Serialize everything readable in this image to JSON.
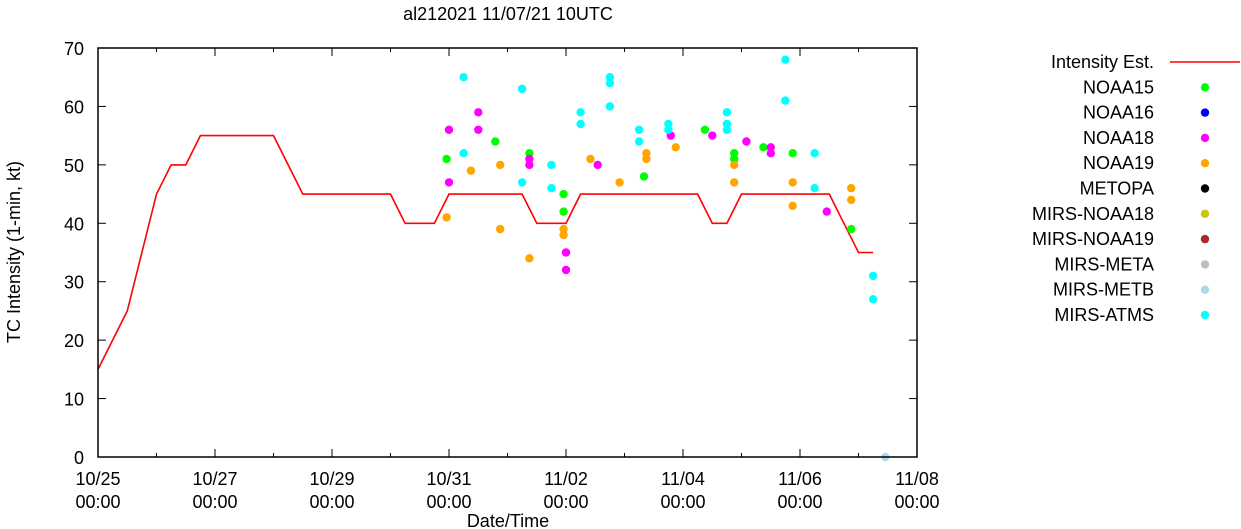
{
  "chart_data": {
    "type": "scatter",
    "title": "al212021 11/07/21 10UTC",
    "xlabel": "Date/Time",
    "ylabel": "TC Intensity (1-min, kt)",
    "ylim": [
      0,
      70
    ],
    "yticks": [
      "0",
      "10",
      "20",
      "30",
      "40",
      "50",
      "60",
      "70"
    ],
    "xlim": [
      "2021-10-25 00:00",
      "2021-11-08 00:00"
    ],
    "xticks": [
      {
        "date": "10/25",
        "time": "00:00"
      },
      {
        "date": "10/27",
        "time": "00:00"
      },
      {
        "date": "10/29",
        "time": "00:00"
      },
      {
        "date": "10/31",
        "time": "00:00"
      },
      {
        "date": "11/02",
        "time": "00:00"
      },
      {
        "date": "11/04",
        "time": "00:00"
      },
      {
        "date": "11/06",
        "time": "00:00"
      },
      {
        "date": "11/08",
        "time": "00:00"
      }
    ],
    "grid": false,
    "legend_position": "right",
    "line_series": {
      "name": "Intensity Est.",
      "color": "#ff0000",
      "points": [
        [
          "2021-10-25 00:00",
          15
        ],
        [
          "2021-10-25 12:00",
          25
        ],
        [
          "2021-10-26 00:00",
          45
        ],
        [
          "2021-10-26 06:00",
          50
        ],
        [
          "2021-10-26 12:00",
          50
        ],
        [
          "2021-10-26 18:00",
          55
        ],
        [
          "2021-10-28 00:00",
          55
        ],
        [
          "2021-10-28 12:00",
          45
        ],
        [
          "2021-10-30 00:00",
          45
        ],
        [
          "2021-10-30 06:00",
          40
        ],
        [
          "2021-10-30 18:00",
          40
        ],
        [
          "2021-10-31 00:00",
          45
        ],
        [
          "2021-11-01 06:00",
          45
        ],
        [
          "2021-11-01 12:00",
          40
        ],
        [
          "2021-11-02 00:00",
          40
        ],
        [
          "2021-11-02 06:00",
          45
        ],
        [
          "2021-11-04 06:00",
          45
        ],
        [
          "2021-11-04 12:00",
          40
        ],
        [
          "2021-11-04 18:00",
          40
        ],
        [
          "2021-11-05 00:00",
          45
        ],
        [
          "2021-11-06 12:00",
          45
        ],
        [
          "2021-11-06 18:00",
          40
        ],
        [
          "2021-11-07 00:00",
          35
        ],
        [
          "2021-11-07 06:00",
          35
        ]
      ]
    },
    "series": [
      {
        "name": "NOAA15",
        "color": "#00ff00",
        "points": [
          [
            "2021-10-30 23:00",
            51
          ],
          [
            "2021-10-31 19:00",
            54
          ],
          [
            "2021-11-01 09:00",
            52
          ],
          [
            "2021-11-01 23:00",
            45
          ],
          [
            "2021-11-01 23:00",
            42
          ],
          [
            "2021-11-03 08:00",
            48
          ],
          [
            "2021-11-04 09:00",
            56
          ],
          [
            "2021-11-04 21:00",
            52
          ],
          [
            "2021-11-04 21:00",
            51
          ],
          [
            "2021-11-05 09:00",
            53
          ],
          [
            "2021-11-05 21:00",
            52
          ],
          [
            "2021-11-06 21:00",
            39
          ]
        ]
      },
      {
        "name": "NOAA16",
        "color": "#0000ff",
        "points": []
      },
      {
        "name": "NOAA18",
        "color": "#ff00ff",
        "points": [
          [
            "2021-10-31 00:00",
            56
          ],
          [
            "2021-10-31 00:00",
            47
          ],
          [
            "2021-10-31 12:00",
            59
          ],
          [
            "2021-10-31 12:00",
            56
          ],
          [
            "2021-11-01 09:00",
            51
          ],
          [
            "2021-11-01 09:00",
            50
          ],
          [
            "2021-11-02 00:00",
            35
          ],
          [
            "2021-11-02 00:00",
            32
          ],
          [
            "2021-11-02 13:00",
            50
          ],
          [
            "2021-11-03 19:00",
            55
          ],
          [
            "2021-11-04 12:00",
            55
          ],
          [
            "2021-11-05 02:00",
            54
          ],
          [
            "2021-11-05 12:00",
            53
          ],
          [
            "2021-11-05 12:00",
            52
          ],
          [
            "2021-11-06 11:00",
            42
          ]
        ]
      },
      {
        "name": "NOAA19",
        "color": "#ffa500",
        "points": [
          [
            "2021-10-30 23:00",
            41
          ],
          [
            "2021-10-31 09:00",
            49
          ],
          [
            "2021-10-31 21:00",
            50
          ],
          [
            "2021-10-31 21:00",
            39
          ],
          [
            "2021-11-01 09:00",
            34
          ],
          [
            "2021-11-01 23:00",
            39
          ],
          [
            "2021-11-01 23:00",
            38
          ],
          [
            "2021-11-02 10:00",
            51
          ],
          [
            "2021-11-02 22:00",
            47
          ],
          [
            "2021-11-03 09:00",
            52
          ],
          [
            "2021-11-03 09:00",
            51
          ],
          [
            "2021-11-03 21:00",
            53
          ],
          [
            "2021-11-04 21:00",
            50
          ],
          [
            "2021-11-04 21:00",
            47
          ],
          [
            "2021-11-05 21:00",
            47
          ],
          [
            "2021-11-05 21:00",
            43
          ],
          [
            "2021-11-06 21:00",
            46
          ],
          [
            "2021-11-06 21:00",
            44
          ]
        ]
      },
      {
        "name": "METOPA",
        "color": "#000000",
        "points": []
      },
      {
        "name": "MIRS-NOAA18",
        "color": "#c8c800",
        "points": []
      },
      {
        "name": "MIRS-NOAA19",
        "color": "#a52a2a",
        "points": []
      },
      {
        "name": "MIRS-META",
        "color": "#bebebe",
        "points": []
      },
      {
        "name": "MIRS-METB",
        "color": "#add8e6",
        "points": [
          [
            "2021-11-07 11:00",
            0
          ]
        ]
      },
      {
        "name": "MIRS-ATMS",
        "color": "#00ffff",
        "points": [
          [
            "2021-10-31 06:00",
            65
          ],
          [
            "2021-10-31 06:00",
            52
          ],
          [
            "2021-11-01 06:00",
            63
          ],
          [
            "2021-11-01 06:00",
            63
          ],
          [
            "2021-11-01 06:00",
            47
          ],
          [
            "2021-11-01 18:00",
            50
          ],
          [
            "2021-11-01 18:00",
            46
          ],
          [
            "2021-11-02 06:00",
            59
          ],
          [
            "2021-11-02 06:00",
            57
          ],
          [
            "2021-11-02 18:00",
            65
          ],
          [
            "2021-11-02 18:00",
            64
          ],
          [
            "2021-11-02 18:00",
            60
          ],
          [
            "2021-11-03 06:00",
            56
          ],
          [
            "2021-11-03 06:00",
            54
          ],
          [
            "2021-11-03 18:00",
            57
          ],
          [
            "2021-11-03 18:00",
            56
          ],
          [
            "2021-11-04 18:00",
            59
          ],
          [
            "2021-11-04 18:00",
            57
          ],
          [
            "2021-11-04 18:00",
            56
          ],
          [
            "2021-11-05 18:00",
            68
          ],
          [
            "2021-11-05 18:00",
            61
          ],
          [
            "2021-11-06 06:00",
            52
          ],
          [
            "2021-11-06 06:00",
            46
          ],
          [
            "2021-11-07 06:00",
            31
          ],
          [
            "2021-11-07 06:00",
            27
          ]
        ]
      }
    ]
  }
}
